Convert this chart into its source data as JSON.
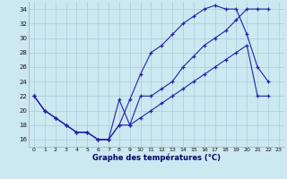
{
  "background_color": "#cce8f0",
  "grid_color": "#aaccdd",
  "line_color": "#2222aa",
  "xlabel": "Graphe des températures (°C)",
  "ylim": [
    15.0,
    35.0
  ],
  "xlim": [
    -0.5,
    23.5
  ],
  "yticks": [
    16,
    18,
    20,
    22,
    24,
    26,
    28,
    30,
    32,
    34
  ],
  "xticks": [
    0,
    1,
    2,
    3,
    4,
    5,
    6,
    7,
    8,
    9,
    10,
    11,
    12,
    13,
    14,
    15,
    16,
    17,
    18,
    19,
    20,
    21,
    22,
    23
  ],
  "series1_x": [
    0,
    1,
    2,
    3,
    4,
    5,
    6,
    7,
    8,
    9,
    10,
    11,
    12,
    13,
    14,
    15,
    16,
    17,
    18,
    19,
    20,
    21,
    22
  ],
  "series1_y": [
    22,
    20,
    19,
    18,
    17,
    17,
    16,
    16,
    18,
    18,
    19,
    20,
    21,
    22,
    23,
    24,
    25,
    26,
    27,
    28,
    29,
    22,
    22
  ],
  "series2_x": [
    0,
    1,
    2,
    3,
    4,
    5,
    6,
    7,
    8,
    9,
    10,
    11,
    12,
    13,
    14,
    15,
    16,
    17,
    18,
    19,
    20,
    21,
    22
  ],
  "series2_y": [
    22,
    20,
    19,
    18,
    17,
    17,
    16,
    16,
    18,
    21.5,
    25,
    28,
    29,
    30.5,
    32,
    33,
    34,
    34.5,
    34,
    34,
    30.5,
    26,
    24
  ],
  "series3_x": [
    0,
    1,
    2,
    3,
    4,
    5,
    6,
    7,
    8,
    9,
    10,
    11,
    12,
    13,
    14,
    15,
    16,
    17,
    18,
    19,
    20,
    21,
    22
  ],
  "series3_y": [
    22,
    20,
    19,
    18,
    17,
    17,
    16,
    16,
    21.5,
    18,
    22,
    22,
    23,
    24,
    26,
    27.5,
    29,
    30,
    31,
    32.5,
    34,
    34,
    34
  ]
}
